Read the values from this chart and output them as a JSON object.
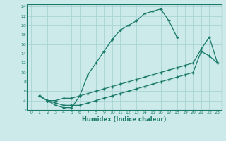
{
  "xlabel": "Humidex (Indice chaleur)",
  "bg_color": "#cceaea",
  "line_color": "#1a7a6a",
  "grid_color": "#aad4d4",
  "xlim": [
    -0.5,
    23.5
  ],
  "ylim": [
    2,
    24.5
  ],
  "xticks": [
    0,
    1,
    2,
    3,
    4,
    5,
    6,
    7,
    8,
    9,
    10,
    11,
    12,
    13,
    14,
    15,
    16,
    17,
    18,
    19,
    20,
    21,
    22,
    23
  ],
  "yticks": [
    2,
    4,
    6,
    8,
    10,
    12,
    14,
    16,
    18,
    20,
    22,
    24
  ],
  "line1_x": [
    1,
    2,
    3,
    4,
    5,
    6,
    7,
    8,
    9,
    10,
    11,
    12,
    13,
    14,
    15,
    16,
    17,
    18
  ],
  "line1_y": [
    5,
    4,
    3,
    2.5,
    2.5,
    5,
    9.5,
    12,
    14.5,
    17,
    19,
    20,
    21,
    22.5,
    23,
    23.5,
    21,
    17.5
  ],
  "line2_x": [
    1,
    2,
    3,
    4,
    5,
    6,
    7,
    8,
    9,
    10,
    11,
    12,
    13,
    14,
    15,
    16,
    17,
    18,
    19,
    20,
    21,
    22,
    23
  ],
  "line2_y": [
    5,
    4,
    4,
    4.5,
    4.5,
    5,
    5.5,
    6,
    6.5,
    7,
    7.5,
    8,
    8.5,
    9,
    9.5,
    10,
    10.5,
    11,
    11.5,
    12,
    15,
    17.5,
    12
  ],
  "line3_x": [
    1,
    2,
    3,
    4,
    5,
    6,
    7,
    8,
    9,
    10,
    11,
    12,
    13,
    14,
    15,
    16,
    17,
    18,
    19,
    20,
    21,
    22,
    23
  ],
  "line3_y": [
    5,
    4,
    3.5,
    3,
    3,
    3,
    3.5,
    4,
    4.5,
    5,
    5.5,
    6,
    6.5,
    7,
    7.5,
    8,
    8.5,
    9,
    9.5,
    10,
    14.5,
    13.5,
    12
  ]
}
